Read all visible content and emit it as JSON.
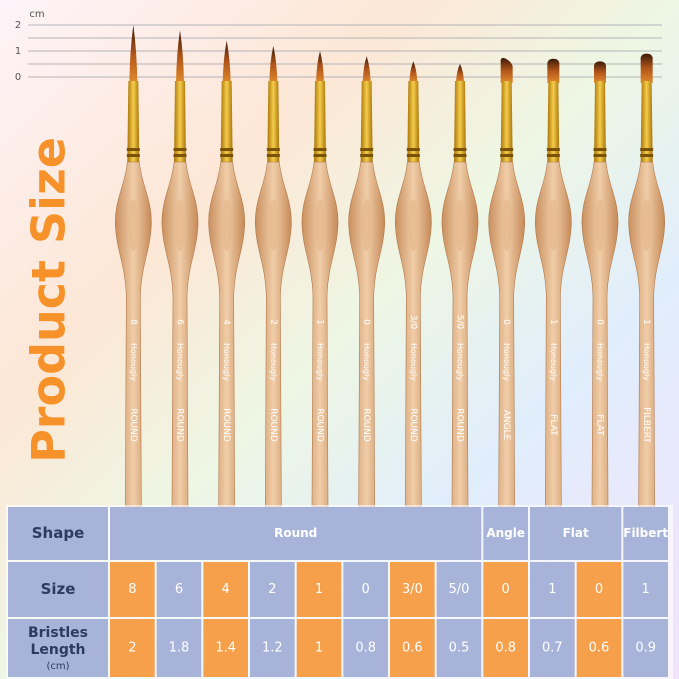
{
  "ruler": {
    "unit": "cm",
    "ticks": [
      "2",
      "1",
      "0"
    ]
  },
  "title": "Product Size",
  "brushes": [
    {
      "size": "8",
      "brand": "Honougly",
      "shape": "ROUND"
    },
    {
      "size": "6",
      "brand": "Honougly",
      "shape": "ROUND"
    },
    {
      "size": "4",
      "brand": "Honougly",
      "shape": "ROUND"
    },
    {
      "size": "2",
      "brand": "Honougly",
      "shape": "ROUND"
    },
    {
      "size": "1",
      "brand": "Honougly",
      "shape": "ROUND"
    },
    {
      "size": "0",
      "brand": "Honougly",
      "shape": "ROUND"
    },
    {
      "size": "3/0",
      "brand": "Honougly",
      "shape": "ROUND"
    },
    {
      "size": "5/0",
      "brand": "Honougly",
      "shape": "ROUND"
    },
    {
      "size": "0",
      "brand": "Honougly",
      "shape": "ANGLE"
    },
    {
      "size": "1",
      "brand": "Honougly",
      "shape": "FLAT"
    },
    {
      "size": "0",
      "brand": "Honougly",
      "shape": "FLAT"
    },
    {
      "size": "1",
      "brand": "Honougly",
      "shape": "FILBERT"
    }
  ],
  "table": {
    "shape_header": "Shape",
    "shapes": [
      "Round",
      "Angle",
      "Flat",
      "Filbert"
    ],
    "rows": [
      {
        "label": "Size",
        "cells": [
          "8",
          "6",
          "4",
          "2",
          "1",
          "0",
          "3/0",
          "5/0",
          "0",
          "1",
          "0",
          "1"
        ]
      },
      {
        "label": "Bristles Length",
        "unit": "(cm)",
        "cells": [
          2,
          1.8,
          1.4,
          1.2,
          1,
          0.8,
          0.6,
          0.5,
          0.8,
          0.7,
          0.6,
          0.9
        ]
      }
    ]
  }
}
